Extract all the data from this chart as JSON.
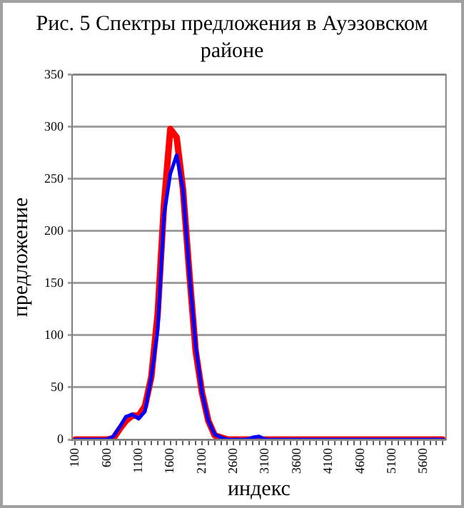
{
  "chart_data": {
    "type": "line",
    "title": "Рис. 5 Спектры предложения в Ауэзовском районе",
    "xlabel": "индекс",
    "ylabel": "предложение",
    "categories": [
      "100",
      null,
      null,
      null,
      null,
      "600",
      null,
      null,
      null,
      null,
      "1100",
      null,
      null,
      null,
      null,
      "1600",
      null,
      null,
      null,
      null,
      "2100",
      null,
      null,
      null,
      null,
      "2600",
      null,
      null,
      null,
      null,
      "3100",
      null,
      null,
      null,
      null,
      "3600",
      null,
      null,
      null,
      null,
      "4100",
      null,
      null,
      null,
      null,
      "4600",
      null,
      null,
      null,
      null,
      "5100",
      null,
      null,
      null,
      null,
      "5600",
      null,
      null,
      null
    ],
    "series": [
      {
        "color": "#0000ff",
        "values": [
          0,
          0,
          0,
          0,
          0,
          0,
          3,
          12,
          22,
          24,
          20,
          27,
          60,
          105,
          215,
          255,
          273,
          240,
          160,
          90,
          45,
          18,
          5,
          2,
          0,
          0,
          0,
          0,
          2,
          3,
          0,
          0,
          0,
          0,
          0,
          0,
          0,
          0,
          0,
          0,
          0,
          0,
          0,
          0,
          0,
          0,
          0,
          0,
          0,
          0,
          0,
          0,
          0,
          0,
          0,
          0,
          0,
          0,
          0
        ]
      },
      {
        "color": "#ff0000",
        "values": [
          0,
          0,
          0,
          0,
          0,
          0,
          1,
          10,
          18,
          23,
          23,
          32,
          60,
          120,
          225,
          298,
          290,
          240,
          160,
          85,
          45,
          18,
          4,
          2,
          0,
          0,
          0,
          0,
          0,
          0,
          0,
          0,
          0,
          0,
          0,
          0,
          0,
          0,
          0,
          0,
          0,
          0,
          0,
          0,
          0,
          0,
          0,
          0,
          0,
          0,
          0,
          0,
          0,
          0,
          0,
          0,
          0,
          0,
          0
        ]
      }
    ],
    "ylim": [
      0,
      350
    ],
    "yticks": [
      0,
      50,
      100,
      150,
      200,
      250,
      300,
      350
    ],
    "grid": "y",
    "marker": "none",
    "line_style": "solid",
    "legend": false
  }
}
